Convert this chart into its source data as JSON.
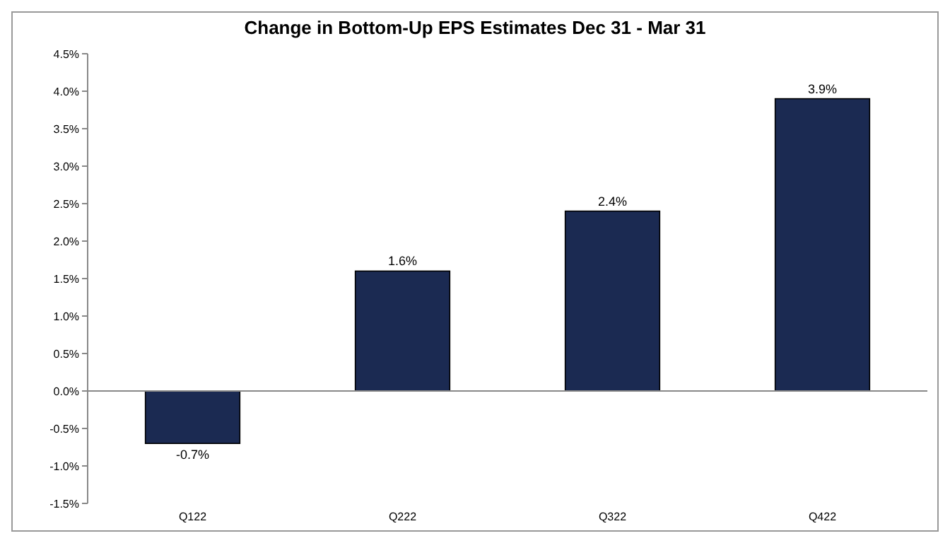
{
  "chart_data": {
    "type": "bar",
    "title": "Change in Bottom-Up EPS Estimates Dec 31 - Mar 31",
    "categories": [
      "Q122",
      "Q222",
      "Q322",
      "Q422"
    ],
    "values": [
      -0.7,
      1.6,
      2.4,
      3.9
    ],
    "value_labels": [
      "-0.7%",
      "1.6%",
      "2.4%",
      "3.9%"
    ],
    "color": "#1b2a52",
    "ylim": [
      -1.5,
      4.5
    ],
    "yticks": [
      {
        "value": -1.5,
        "label": "-1.5%"
      },
      {
        "value": -1,
        "label": "-1.0%"
      },
      {
        "value": -0.5,
        "label": "-0.5%"
      },
      {
        "value": 0,
        "label": "0.0%"
      },
      {
        "value": 0.5,
        "label": "0.5%"
      },
      {
        "value": 1,
        "label": "1.0%"
      },
      {
        "value": 1.5,
        "label": "1.5%"
      },
      {
        "value": 2,
        "label": "2.0%"
      },
      {
        "value": 2.5,
        "label": "2.5%"
      },
      {
        "value": 3,
        "label": "3.0%"
      },
      {
        "value": 3.5,
        "label": "3.5%"
      },
      {
        "value": 4,
        "label": "4.0%"
      },
      {
        "value": 4.5,
        "label": "4.5%"
      }
    ]
  }
}
